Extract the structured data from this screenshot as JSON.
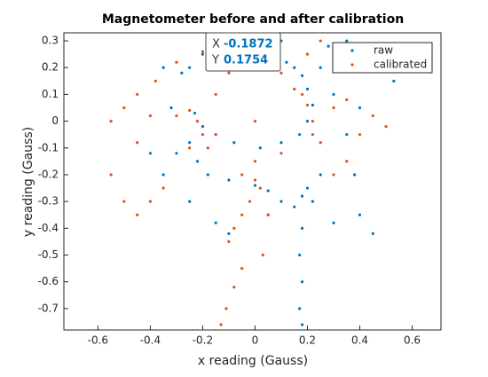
{
  "chart_data": {
    "type": "scatter",
    "title": "Magnetometer before and after calibration",
    "x_label": "x reading (Gauss)",
    "y_label": "y reading (Gauss)",
    "xlim": [
      -0.73,
      0.71
    ],
    "ylim": [
      -0.78,
      0.33
    ],
    "xticks": [
      -0.6,
      -0.4,
      -0.2,
      0,
      0.2,
      0.4,
      0.6
    ],
    "yticks": [
      0.3,
      0.2,
      0.1,
      0,
      -0.1,
      -0.2,
      -0.3,
      -0.4,
      -0.5,
      -0.6,
      -0.7
    ],
    "legend": "northeast",
    "datatip": {
      "labels": [
        "X",
        "Y"
      ],
      "values": [
        -0.1872,
        0.1754
      ]
    },
    "series": [
      {
        "name": "raw",
        "color": "#0072bd",
        "x": [
          -0.25,
          -0.2,
          -0.12,
          -0.05,
          0.02,
          0.08,
          0.12,
          0.15,
          0.18,
          0.2,
          0.22,
          0.2,
          0.17,
          0.1,
          0.02,
          -0.08,
          -0.15,
          -0.2,
          -0.23,
          -0.25,
          -0.22,
          -0.18,
          -0.1,
          0.0,
          0.05,
          0.1,
          0.15,
          0.18,
          0.2,
          0.22,
          0.18,
          0.17,
          0.18,
          0.17,
          0.18,
          0.28,
          0.35,
          0.42,
          0.5,
          0.53,
          0.4,
          0.35,
          0.38,
          0.4,
          0.45,
          0.3,
          0.25,
          -0.3,
          -0.4,
          -0.35,
          -0.25,
          -0.15,
          -0.1,
          0.05,
          -0.32,
          -0.35,
          -0.28,
          0.3,
          0.25,
          0.1
        ],
        "values": [
          0.2,
          0.25,
          0.28,
          0.27,
          0.26,
          0.24,
          0.22,
          0.2,
          0.17,
          0.12,
          0.06,
          0.0,
          -0.05,
          -0.08,
          -0.1,
          -0.08,
          -0.05,
          -0.02,
          0.03,
          -0.08,
          -0.15,
          -0.2,
          -0.22,
          -0.24,
          -0.26,
          -0.3,
          -0.32,
          -0.28,
          -0.25,
          -0.3,
          -0.4,
          -0.5,
          -0.6,
          -0.7,
          -0.76,
          0.28,
          0.3,
          0.25,
          0.2,
          0.15,
          0.05,
          -0.05,
          -0.2,
          -0.35,
          -0.42,
          -0.38,
          -0.2,
          -0.12,
          -0.12,
          -0.2,
          -0.3,
          -0.38,
          -0.42,
          -0.35,
          0.05,
          0.2,
          0.18,
          0.1,
          0.2,
          0.3
        ]
      },
      {
        "name": "calibrated",
        "color": "#d95319",
        "x": [
          -0.5,
          -0.55,
          -0.45,
          -0.4,
          -0.3,
          -0.25,
          -0.22,
          -0.2,
          -0.18,
          -0.15,
          -0.1,
          -0.05,
          0.0,
          0.05,
          0.1,
          0.15,
          0.18,
          0.2,
          0.22,
          0.22,
          0.25,
          0.3,
          0.35,
          0.45,
          0.5,
          0.4,
          0.1,
          0.0,
          -0.05,
          0.0,
          0.02,
          -0.02,
          -0.05,
          -0.08,
          -0.1,
          0.05,
          0.03,
          -0.05,
          -0.08,
          -0.11,
          -0.13,
          -0.35,
          -0.4,
          -0.45,
          -0.5,
          -0.55,
          -0.45,
          -0.38,
          -0.3,
          -0.2,
          -0.05,
          0.08,
          0.2,
          0.25,
          0.35,
          0.3,
          -0.15,
          -0.25,
          0.0
        ],
        "values": [
          0.05,
          0.0,
          -0.08,
          0.02,
          0.02,
          0.04,
          0.0,
          -0.05,
          -0.1,
          0.1,
          0.18,
          0.2,
          0.22,
          0.2,
          0.18,
          0.12,
          0.1,
          0.06,
          0.0,
          -0.05,
          -0.08,
          0.05,
          0.08,
          0.02,
          -0.02,
          -0.05,
          -0.12,
          -0.15,
          -0.2,
          -0.22,
          -0.25,
          -0.3,
          -0.35,
          -0.4,
          -0.45,
          -0.35,
          -0.5,
          -0.55,
          -0.62,
          -0.7,
          -0.76,
          -0.25,
          -0.3,
          -0.35,
          -0.3,
          -0.2,
          0.1,
          0.15,
          0.22,
          0.26,
          0.25,
          0.25,
          0.25,
          0.3,
          -0.15,
          -0.2,
          -0.05,
          -0.1,
          0.0
        ]
      }
    ]
  }
}
